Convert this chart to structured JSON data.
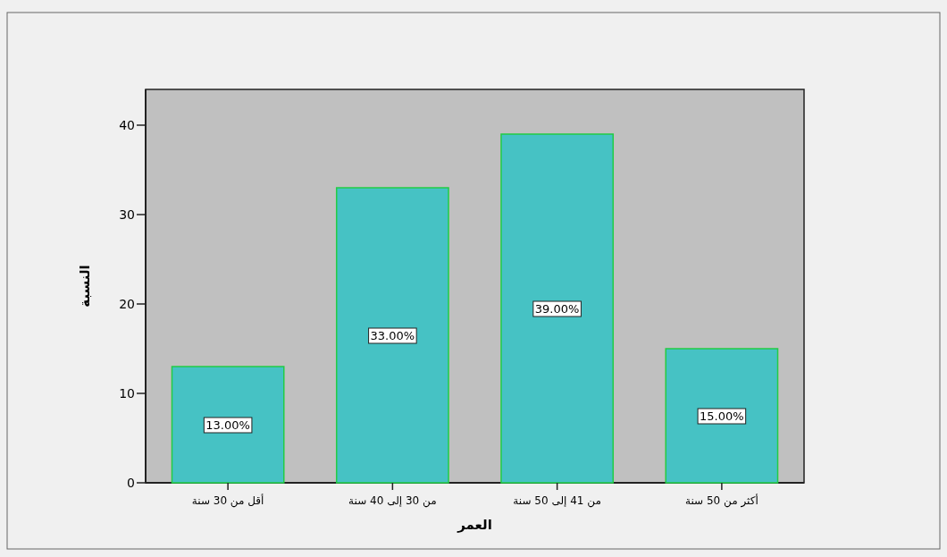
{
  "chart_data": {
    "type": "bar",
    "xlabel": "العمر",
    "ylabel": "النسبة",
    "categories": [
      "أقل من 30 سنة",
      "من 30 إلى 40 سنة",
      "من 41 إلى 50 سنة",
      "أكثر من 50 سنة"
    ],
    "values": [
      13,
      33,
      39,
      15
    ],
    "color": "#46c2c4",
    "value_labels": [
      "13.00%",
      "33.00%",
      "39.00%",
      "15.00%"
    ],
    "ylim": [
      0,
      44
    ],
    "yticks": [
      0,
      10,
      20,
      30,
      40
    ],
    "grid": false
  }
}
